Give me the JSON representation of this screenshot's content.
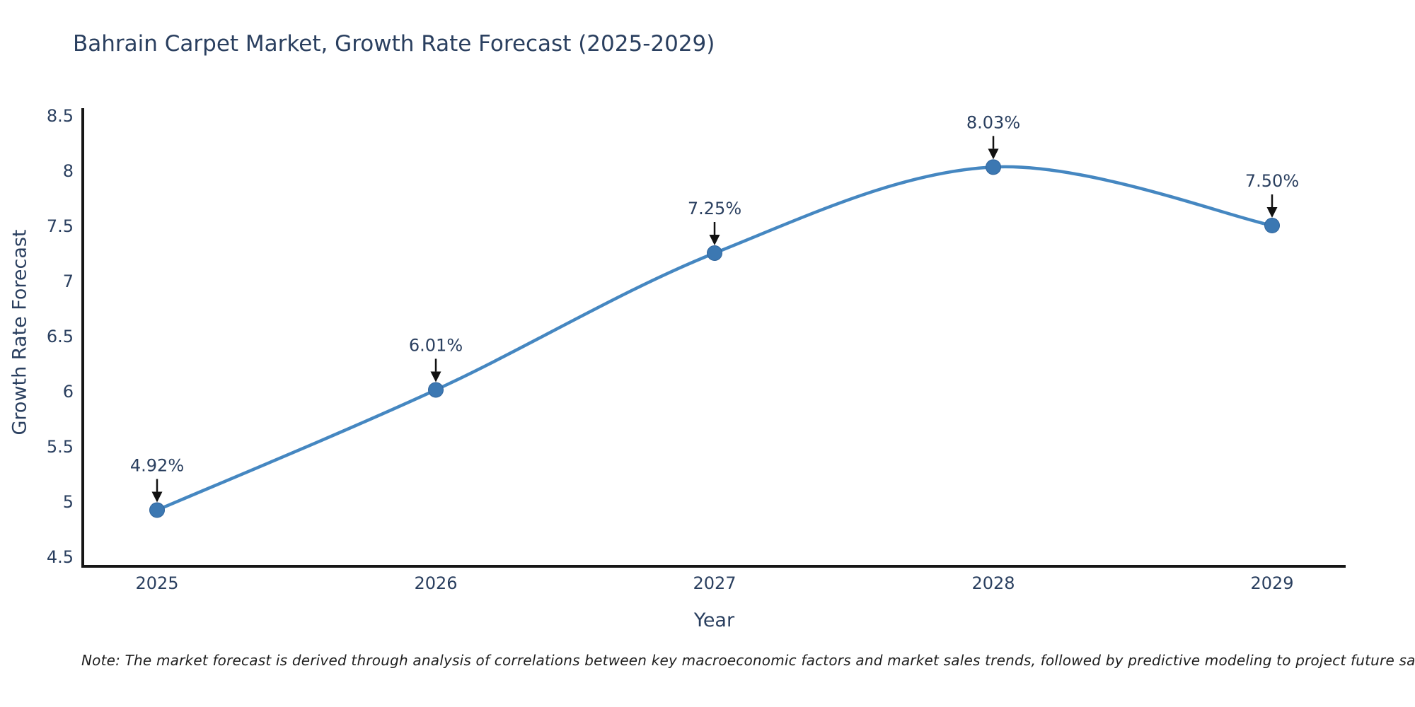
{
  "title": "Bahrain Carpet Market, Growth Rate Forecast (2025-2029)",
  "note": "Note: The market forecast is derived through analysis of correlations between key macroeconomic factors and market sales trends, followed by predictive modeling to project future sales",
  "chart_data": {
    "type": "line",
    "line_shape": "spline",
    "title": "Bahrain Carpet Market, Growth Rate Forecast (2025-2029)",
    "xlabel": "Year",
    "ylabel": "Growth Rate Forecast",
    "categories": [
      "2025",
      "2026",
      "2027",
      "2028",
      "2029"
    ],
    "values": [
      4.92,
      6.01,
      7.25,
      8.03,
      7.5
    ],
    "point_labels": [
      "4.92%",
      "6.01%",
      "7.25%",
      "8.03%",
      "7.50%"
    ],
    "ylim": [
      4.5,
      8.5
    ],
    "yticks": [
      4.5,
      5,
      5.5,
      6,
      6.5,
      7,
      7.5,
      8,
      8.5
    ],
    "ytick_labels": [
      "4.5",
      "5",
      "5.5",
      "6",
      "6.5",
      "7",
      "7.5",
      "8",
      "8.5"
    ],
    "grid": false,
    "legend": "none",
    "markers": true,
    "annotations_with_arrows": true,
    "colors": {
      "line": "#4587c1",
      "marker": "#3c78b2",
      "marker_edge": "#30649c",
      "axis_line": "#161616",
      "tick_text": "#2a3f5f",
      "annotation_text": "#2a3f5f",
      "annotation_arrow": "#111111",
      "background": "#ffffff"
    }
  }
}
